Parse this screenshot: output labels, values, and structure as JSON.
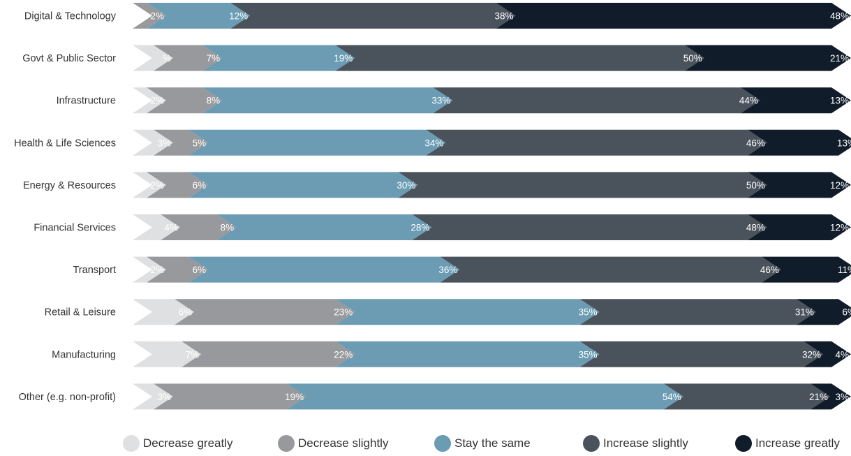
{
  "chart_data": {
    "type": "bar",
    "orientation": "horizontal",
    "stacked": true,
    "normalized": true,
    "categories": [
      "Digital & Technology",
      "Govt &  Public Sector",
      "Infrastructure",
      "Health & Life Sciences",
      "Energy & Resources",
      "Financial Services",
      "Transport",
      "Retail & Leisure",
      "Manufacturing",
      "Other (e.g. non-profit)"
    ],
    "series": [
      {
        "name": "Decrease greatly",
        "color": "#dfe0e2",
        "values": [
          0,
          3,
          2,
          3,
          2,
          4,
          2,
          6,
          7,
          3
        ]
      },
      {
        "name": "Decrease slightly",
        "color": "#98999c",
        "values": [
          2,
          7,
          8,
          5,
          6,
          8,
          6,
          23,
          22,
          19
        ]
      },
      {
        "name": "Stay the same",
        "color": "#6b9cb4",
        "values": [
          12,
          19,
          33,
          34,
          30,
          28,
          36,
          35,
          35,
          54
        ]
      },
      {
        "name": "Increase slightly",
        "color": "#4a525c",
        "values": [
          38,
          50,
          44,
          46,
          50,
          48,
          46,
          31,
          32,
          21
        ]
      },
      {
        "name": "Increase greatly",
        "color": "#111c2a",
        "values": [
          48,
          21,
          13,
          13,
          12,
          12,
          11,
          6,
          4,
          3
        ]
      }
    ],
    "data_labels": [
      [
        "",
        "2%",
        "12%",
        "38%",
        "48%"
      ],
      [
        "%",
        "7%",
        "19%",
        "50%",
        "21%"
      ],
      [
        "2%",
        "8%",
        "33%",
        "44%",
        "13%"
      ],
      [
        "3%",
        "5%",
        "34%",
        "46%",
        "13%"
      ],
      [
        "2%",
        "6%",
        "30%",
        "50%",
        "12%"
      ],
      [
        "4%",
        "8%",
        "28%",
        "48%",
        "12%"
      ],
      [
        "2%",
        "6%",
        "36%",
        "46%",
        "11%"
      ],
      [
        "6%",
        "23%",
        "35%",
        "31%",
        "6%"
      ],
      [
        "7%",
        "22%",
        "35%",
        "32%",
        "4%"
      ],
      [
        "3%",
        "19%",
        "54%",
        "21%",
        "3%"
      ]
    ],
    "legend_position": "bottom",
    "grid": false,
    "title": "",
    "xlabel": "",
    "ylabel": ""
  }
}
